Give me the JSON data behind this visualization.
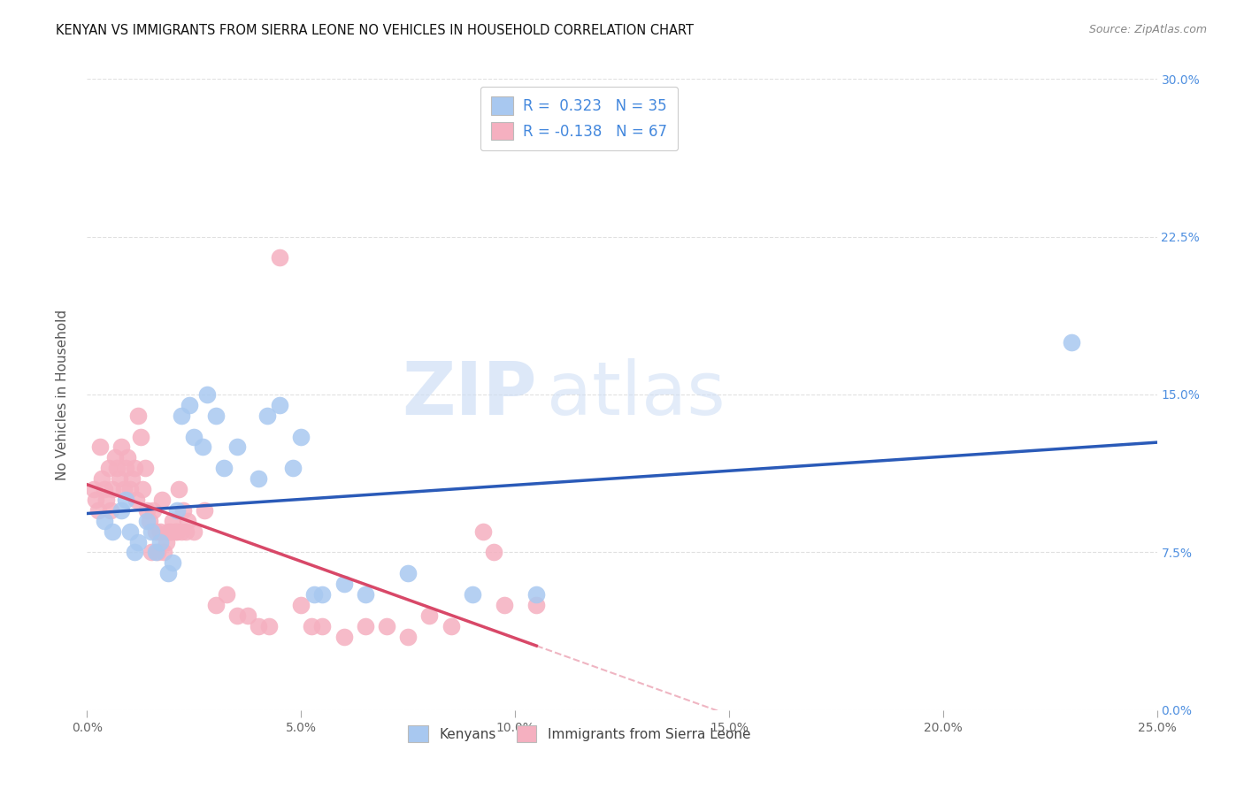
{
  "title": "KENYAN VS IMMIGRANTS FROM SIERRA LEONE NO VEHICLES IN HOUSEHOLD CORRELATION CHART",
  "source": "Source: ZipAtlas.com",
  "xlabel_kenyans": "Kenyans",
  "xlabel_sierra_leone": "Immigrants from Sierra Leone",
  "ylabel": "No Vehicles in Household",
  "xlim": [
    0.0,
    25.0
  ],
  "ylim": [
    0.0,
    30.0
  ],
  "xticks": [
    0.0,
    5.0,
    10.0,
    15.0,
    20.0,
    25.0
  ],
  "xticklabels": [
    "0.0%",
    "",
    "",
    "",
    "",
    "25.0%"
  ],
  "yticks_right": [
    0.0,
    7.5,
    15.0,
    22.5,
    30.0
  ],
  "yticklabels_right": [
    "0.0%",
    "7.5%",
    "15.0%",
    "22.5%",
    "30.0%"
  ],
  "legend_r_blue": "R =  0.323   N = 35",
  "legend_r_pink": "R = -0.138   N = 67",
  "blue_color": "#a8c8f0",
  "pink_color": "#f5b0c0",
  "blue_line_color": "#2a5ab8",
  "pink_line_color": "#d84868",
  "watermark_zip": "ZIP",
  "watermark_atlas": "atlas",
  "background_color": "#ffffff",
  "grid_color": "#dddddd",
  "blue_x": [
    0.4,
    0.6,
    0.8,
    0.9,
    1.0,
    1.1,
    1.2,
    1.4,
    1.5,
    1.6,
    1.7,
    1.9,
    2.0,
    2.1,
    2.2,
    2.4,
    2.5,
    2.7,
    2.8,
    3.0,
    3.2,
    3.5,
    4.0,
    4.2,
    4.5,
    4.8,
    5.0,
    5.3,
    5.5,
    6.0,
    6.5,
    7.5,
    9.0,
    10.5,
    23.0
  ],
  "blue_y": [
    9.0,
    8.5,
    9.5,
    10.0,
    8.5,
    7.5,
    8.0,
    9.0,
    8.5,
    7.5,
    8.0,
    6.5,
    7.0,
    9.5,
    14.0,
    14.5,
    13.0,
    12.5,
    15.0,
    14.0,
    11.5,
    12.5,
    11.0,
    14.0,
    14.5,
    11.5,
    13.0,
    5.5,
    5.5,
    6.0,
    5.5,
    6.5,
    5.5,
    5.5,
    17.5
  ],
  "pink_x": [
    0.15,
    0.2,
    0.25,
    0.3,
    0.35,
    0.4,
    0.45,
    0.5,
    0.55,
    0.6,
    0.65,
    0.7,
    0.75,
    0.8,
    0.85,
    0.9,
    0.95,
    1.0,
    1.05,
    1.1,
    1.15,
    1.2,
    1.25,
    1.3,
    1.35,
    1.4,
    1.45,
    1.5,
    1.55,
    1.6,
    1.65,
    1.7,
    1.75,
    1.8,
    1.85,
    1.9,
    1.95,
    2.0,
    2.05,
    2.1,
    2.15,
    2.2,
    2.25,
    2.3,
    2.35,
    2.5,
    2.75,
    3.0,
    3.25,
    3.5,
    3.75,
    4.0,
    4.25,
    4.5,
    5.0,
    5.25,
    5.5,
    6.0,
    6.5,
    7.0,
    7.5,
    8.0,
    8.5,
    9.25,
    9.5,
    9.75,
    10.5
  ],
  "pink_y": [
    10.5,
    10.0,
    9.5,
    12.5,
    11.0,
    10.5,
    10.0,
    11.5,
    9.5,
    10.5,
    12.0,
    11.5,
    11.0,
    12.5,
    10.5,
    11.5,
    12.0,
    10.5,
    11.0,
    11.5,
    10.0,
    14.0,
    13.0,
    10.5,
    11.5,
    9.5,
    9.0,
    7.5,
    9.5,
    8.5,
    7.5,
    8.5,
    10.0,
    7.5,
    8.0,
    8.5,
    8.5,
    9.0,
    8.5,
    8.5,
    10.5,
    8.5,
    9.5,
    8.5,
    9.0,
    8.5,
    9.5,
    5.0,
    5.5,
    4.5,
    4.5,
    4.0,
    4.0,
    21.5,
    5.0,
    4.0,
    4.0,
    3.5,
    4.0,
    4.0,
    3.5,
    4.5,
    4.0,
    8.5,
    7.5,
    5.0,
    5.0
  ],
  "pink_solid_end": 10.5,
  "pink_dashed_end": 25.0
}
